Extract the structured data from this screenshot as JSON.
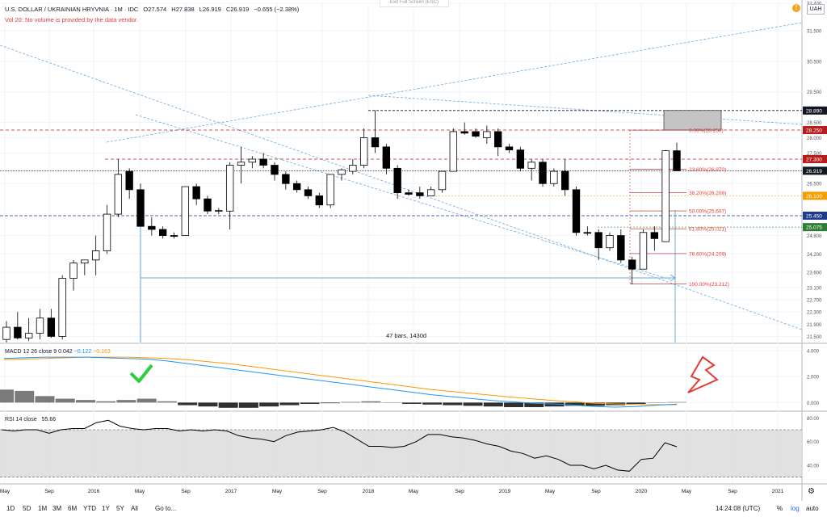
{
  "header": {
    "title": "U.S. DOLLAR / UKRAINIAN HRYVNIA · 1M · IDC",
    "open": "O27.574",
    "high": "H27.838",
    "low": "L26.919",
    "close": "C26.919",
    "change": "−0.655 (−2.38%)",
    "volume_note": "Vol 20: No volume is provided by the data vendor.",
    "exit_label": "Exit Full Screen (ESC)",
    "currency": "UAH"
  },
  "colors": {
    "up": "#ffffff",
    "down": "#000000",
    "dashed_lines": "#6ea8d8",
    "level_red": "#b71c1c",
    "fib_line": "#b71c1c",
    "macd": "#2196f3",
    "signal": "#ff9800"
  },
  "chart_data": [
    {
      "type": "candlestick",
      "title": "",
      "interval": "1M",
      "ylim": [
        21.3,
        32.4
      ],
      "y_ticks": [
        "32.400",
        "31.500",
        "30.500",
        "29.500",
        "28.500",
        "28.000",
        "27.500",
        "26.500",
        "25.500",
        "24.800",
        "24.200",
        "23.600",
        "23.100",
        "22.700",
        "22.300",
        "21.900",
        "21.500"
      ],
      "x_ticks": [
        "May",
        "Sep",
        "2016",
        "May",
        "Sep",
        "2017",
        "May",
        "Sep",
        "2018",
        "May",
        "Sep",
        "2019",
        "May",
        "Sep",
        "2020",
        "May",
        "Sep",
        "2021"
      ],
      "candles": [
        {
          "o": 21.4,
          "h": 22.0,
          "l": 21.3,
          "c": 21.8
        },
        {
          "o": 21.8,
          "h": 22.3,
          "l": 21.4,
          "c": 21.45
        },
        {
          "o": 21.45,
          "h": 22.1,
          "l": 21.35,
          "c": 21.6
        },
        {
          "o": 21.6,
          "h": 22.4,
          "l": 21.4,
          "c": 22.1
        },
        {
          "o": 22.1,
          "h": 22.4,
          "l": 21.45,
          "c": 21.5
        },
        {
          "o": 21.5,
          "h": 23.5,
          "l": 21.4,
          "c": 23.4
        },
        {
          "o": 23.4,
          "h": 24.0,
          "l": 23.0,
          "c": 23.9
        },
        {
          "o": 23.9,
          "h": 24.0,
          "l": 23.5,
          "c": 24.0
        },
        {
          "o": 24.0,
          "h": 24.8,
          "l": 23.5,
          "c": 24.3
        },
        {
          "o": 24.3,
          "h": 25.8,
          "l": 24.2,
          "c": 25.5
        },
        {
          "o": 25.5,
          "h": 27.3,
          "l": 25.4,
          "c": 26.8
        },
        {
          "o": 26.9,
          "h": 27.0,
          "l": 26.0,
          "c": 26.3
        },
        {
          "o": 26.3,
          "h": 26.5,
          "l": 25.2,
          "c": 25.1
        },
        {
          "o": 25.1,
          "h": 25.4,
          "l": 24.8,
          "c": 25.0
        },
        {
          "o": 25.0,
          "h": 25.1,
          "l": 24.7,
          "c": 24.8
        },
        {
          "o": 24.8,
          "h": 24.9,
          "l": 24.7,
          "c": 24.78
        },
        {
          "o": 24.8,
          "h": 26.4,
          "l": 24.8,
          "c": 26.4
        },
        {
          "o": 26.4,
          "h": 26.5,
          "l": 25.8,
          "c": 26.0
        },
        {
          "o": 26.0,
          "h": 26.1,
          "l": 25.5,
          "c": 25.6
        },
        {
          "o": 25.6,
          "h": 25.7,
          "l": 25.5,
          "c": 25.62
        },
        {
          "o": 25.6,
          "h": 27.2,
          "l": 25.0,
          "c": 27.1
        },
        {
          "o": 27.1,
          "h": 27.7,
          "l": 26.5,
          "c": 27.2
        },
        {
          "o": 27.2,
          "h": 27.4,
          "l": 27.0,
          "c": 27.3
        },
        {
          "o": 27.3,
          "h": 27.5,
          "l": 27.0,
          "c": 27.1
        },
        {
          "o": 27.1,
          "h": 27.2,
          "l": 26.6,
          "c": 26.8
        },
        {
          "o": 26.8,
          "h": 26.9,
          "l": 26.3,
          "c": 26.5
        },
        {
          "o": 26.5,
          "h": 26.6,
          "l": 26.2,
          "c": 26.3
        },
        {
          "o": 26.3,
          "h": 26.4,
          "l": 26.0,
          "c": 26.1
        },
        {
          "o": 26.1,
          "h": 26.2,
          "l": 25.7,
          "c": 25.8
        },
        {
          "o": 25.8,
          "h": 26.8,
          "l": 25.7,
          "c": 26.8
        },
        {
          "o": 26.8,
          "h": 27.0,
          "l": 26.6,
          "c": 26.95
        },
        {
          "o": 26.9,
          "h": 27.3,
          "l": 26.8,
          "c": 27.1
        },
        {
          "o": 27.1,
          "h": 28.3,
          "l": 27.0,
          "c": 28.0
        },
        {
          "o": 28.0,
          "h": 28.9,
          "l": 27.5,
          "c": 27.7
        },
        {
          "o": 27.7,
          "h": 27.8,
          "l": 26.8,
          "c": 27.0
        },
        {
          "o": 27.0,
          "h": 27.1,
          "l": 26.0,
          "c": 26.2
        },
        {
          "o": 26.2,
          "h": 26.3,
          "l": 26.1,
          "c": 26.15
        },
        {
          "o": 26.2,
          "h": 26.4,
          "l": 26.0,
          "c": 26.1
        },
        {
          "o": 26.1,
          "h": 26.4,
          "l": 26.1,
          "c": 26.3
        },
        {
          "o": 26.3,
          "h": 26.9,
          "l": 26.2,
          "c": 26.9
        },
        {
          "o": 26.9,
          "h": 28.3,
          "l": 26.9,
          "c": 28.2
        },
        {
          "o": 28.2,
          "h": 28.5,
          "l": 28.1,
          "c": 28.15
        },
        {
          "o": 28.2,
          "h": 28.3,
          "l": 28.0,
          "c": 28.05
        },
        {
          "o": 28.0,
          "h": 28.4,
          "l": 27.8,
          "c": 28.2
        },
        {
          "o": 28.2,
          "h": 28.3,
          "l": 27.4,
          "c": 27.7
        },
        {
          "o": 27.7,
          "h": 27.8,
          "l": 27.5,
          "c": 27.6
        },
        {
          "o": 27.6,
          "h": 27.7,
          "l": 26.9,
          "c": 27.0
        },
        {
          "o": 27.0,
          "h": 27.3,
          "l": 26.6,
          "c": 27.2
        },
        {
          "o": 27.2,
          "h": 27.3,
          "l": 26.4,
          "c": 26.5
        },
        {
          "o": 26.5,
          "h": 27.0,
          "l": 26.4,
          "c": 26.9
        },
        {
          "o": 26.9,
          "h": 27.3,
          "l": 26.1,
          "c": 26.3
        },
        {
          "o": 26.3,
          "h": 26.4,
          "l": 24.8,
          "c": 24.9
        },
        {
          "o": 24.9,
          "h": 25.1,
          "l": 24.8,
          "c": 24.88
        },
        {
          "o": 24.9,
          "h": 25.0,
          "l": 24.0,
          "c": 24.4
        },
        {
          "o": 24.4,
          "h": 24.9,
          "l": 24.3,
          "c": 24.8
        },
        {
          "o": 24.8,
          "h": 25.0,
          "l": 23.9,
          "c": 24.0
        },
        {
          "o": 24.0,
          "h": 24.1,
          "l": 23.2,
          "c": 23.7
        },
        {
          "o": 23.7,
          "h": 25.0,
          "l": 23.7,
          "c": 24.9
        },
        {
          "o": 24.9,
          "h": 25.1,
          "l": 24.3,
          "c": 24.7
        },
        {
          "o": 24.6,
          "h": 27.6,
          "l": 24.6,
          "c": 27.574
        },
        {
          "o": 27.574,
          "h": 27.838,
          "l": 26.919,
          "c": 26.919
        }
      ],
      "price_labels": [
        {
          "value": 28.89,
          "text": "28.890",
          "color": "#131722"
        },
        {
          "value": 28.25,
          "text": "28.250",
          "color": "#b71c1c"
        },
        {
          "value": 27.3,
          "text": "27.300",
          "color": "#b71c1c"
        },
        {
          "value": 26.919,
          "text": "26.919",
          "color": "#131722"
        },
        {
          "value": 26.1,
          "text": "26.100",
          "color": "#f59d00"
        },
        {
          "value": 25.45,
          "text": "25.450",
          "color": "#1e3a8a"
        },
        {
          "value": 25.075,
          "text": "25.075",
          "color": "#2e7d32"
        }
      ],
      "fib_levels": [
        {
          "value": 28.25,
          "text": "0.00%(28.250)"
        },
        {
          "value": 26.97,
          "text": "23.60%(26.970)"
        },
        {
          "value": 26.208,
          "text": "38.20%(26.208)"
        },
        {
          "value": 25.607,
          "text": "50.00%(25.607)"
        },
        {
          "value": 25.021,
          "text": "61.80%(25.021)"
        },
        {
          "value": 24.209,
          "text": "78.60%(24.209)"
        },
        {
          "value": 23.212,
          "text": "100.00%(23.212)"
        }
      ],
      "range_label": "47 bars, 1430d"
    },
    {
      "type": "line",
      "title": "MACD 12 26 close 9",
      "values_text": [
        "0.042",
        "−0.122",
        "−0.163"
      ],
      "ylim": [
        -0.6,
        4.5
      ],
      "y_ticks": [
        "4.000",
        "2.000",
        "0.000"
      ],
      "series": [
        {
          "name": "MACD",
          "values": [
            3.4,
            3.45,
            3.5,
            3.5,
            3.5,
            3.45,
            3.4,
            3.35,
            3.2,
            3.0,
            2.8,
            2.6,
            2.4,
            2.2,
            2.0,
            1.8,
            1.6,
            1.4,
            1.2,
            1.0,
            0.8,
            0.6,
            0.45,
            0.3,
            0.15,
            0.05,
            -0.05,
            -0.1,
            -0.2,
            -0.3,
            -0.35,
            -0.3,
            -0.2,
            -0.12
          ]
        },
        {
          "name": "Signal",
          "values": [
            3.3,
            3.35,
            3.4,
            3.45,
            3.5,
            3.5,
            3.5,
            3.45,
            3.4,
            3.3,
            3.15,
            3.0,
            2.8,
            2.6,
            2.4,
            2.2,
            2.0,
            1.8,
            1.6,
            1.4,
            1.2,
            1.0,
            0.85,
            0.7,
            0.55,
            0.4,
            0.28,
            0.15,
            0.05,
            -0.05,
            -0.1,
            -0.15,
            -0.16,
            -0.163
          ]
        },
        {
          "name": "Histogram",
          "values": [
            1.0,
            0.9,
            0.5,
            0.3,
            0.2,
            0.1,
            0.2,
            0.3,
            0.1,
            -0.2,
            -0.3,
            -0.4,
            -0.4,
            -0.3,
            -0.2,
            -0.1,
            -0.05,
            0.05,
            0.1,
            0.0,
            -0.1,
            -0.15,
            -0.2,
            -0.25,
            -0.3,
            -0.35,
            -0.35,
            -0.3,
            -0.25,
            -0.25,
            -0.2,
            -0.1,
            0.0,
            0.042
          ]
        }
      ]
    },
    {
      "type": "line",
      "title": "RSI 14 close",
      "value_text": "55.66",
      "ylim": [
        25,
        85
      ],
      "y_ticks": [
        "80.00",
        "60.00",
        "40.00"
      ],
      "bands": [
        30,
        70
      ],
      "series": [
        {
          "name": "RSI",
          "values": [
            70,
            69,
            70,
            70,
            67,
            70,
            71,
            71,
            76,
            78,
            73,
            71,
            70,
            71,
            71,
            69,
            70,
            69,
            70,
            69,
            65,
            63,
            62,
            60,
            65,
            68,
            69,
            70,
            72,
            68,
            62,
            56,
            56,
            55,
            56,
            60,
            66,
            66,
            64,
            63,
            61,
            58,
            56,
            52,
            50,
            46,
            48,
            45,
            40,
            40,
            37,
            40,
            36,
            35,
            45,
            46,
            59,
            55.66
          ]
        }
      ]
    }
  ],
  "bottom_bar": {
    "ranges": [
      "1D",
      "5D",
      "1M",
      "3M",
      "6M",
      "YTD",
      "1Y",
      "5Y",
      "All"
    ],
    "goto": "Go to...",
    "clock": "14:24:08 (UTC)",
    "pct": "%",
    "log": "log",
    "auto": "auto"
  }
}
